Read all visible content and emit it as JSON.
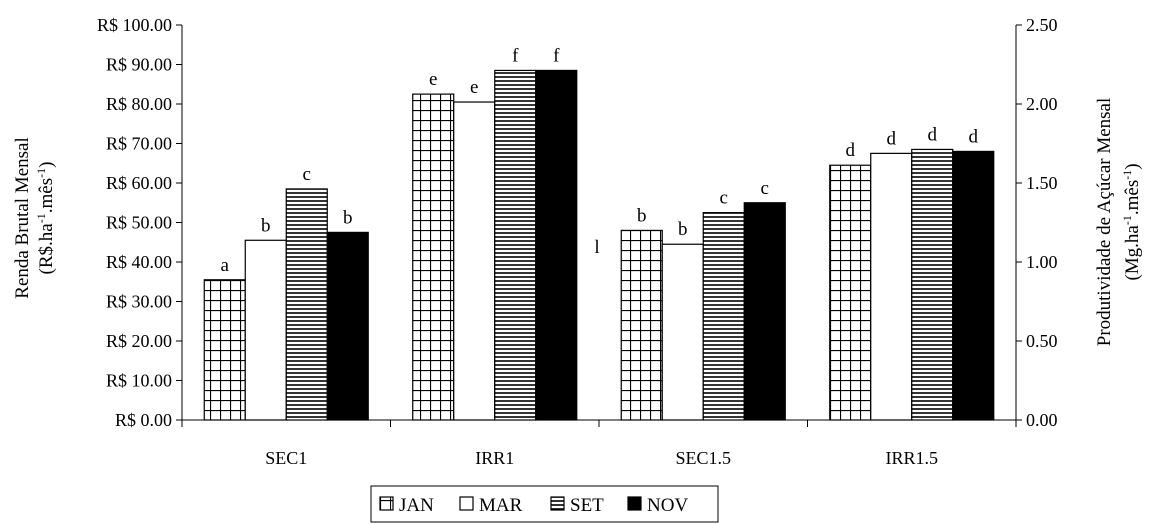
{
  "chart_data": {
    "type": "bar",
    "categories": [
      "SEC1",
      "IRR1",
      "SEC1.5",
      "IRR1.5"
    ],
    "series": [
      {
        "name": "JAN",
        "values": [
          35.5,
          82.5,
          48.0,
          64.5
        ],
        "labels": [
          "a",
          "e",
          "b",
          "d"
        ],
        "pattern": "grid"
      },
      {
        "name": "MAR",
        "values": [
          45.5,
          80.5,
          44.5,
          67.5
        ],
        "labels": [
          "b",
          "e",
          "b",
          "d"
        ],
        "pattern": "white"
      },
      {
        "name": "SET",
        "values": [
          58.5,
          88.5,
          52.5,
          68.5
        ],
        "labels": [
          "c",
          "f",
          "c",
          "d"
        ],
        "pattern": "hlines"
      },
      {
        "name": "NOV",
        "values": [
          47.5,
          88.5,
          55.0,
          68.0
        ],
        "labels": [
          "b",
          "f",
          "c",
          "d"
        ],
        "pattern": "black"
      }
    ],
    "ylim": [
      0,
      100
    ],
    "y_ticks": [
      0,
      10,
      20,
      30,
      40,
      50,
      60,
      70,
      80,
      90,
      100
    ],
    "y_tick_labels": [
      "R$ 0.00",
      "R$ 10.00",
      "R$ 20.00",
      "R$ 30.00",
      "R$ 40.00",
      "R$ 50.00",
      "R$ 60.00",
      "R$ 70.00",
      "R$ 80.00",
      "R$ 90.00",
      "R$ 100.00"
    ],
    "ylabel_line1": "Renda Brutal Mensal",
    "ylabel_line2_pre": "(R$.ha",
    "ylabel_line2_mid": ".mês",
    "ylabel_line2_post": ")",
    "ylabel_sup": "-1",
    "y2lim": [
      0,
      2.5
    ],
    "y2_ticks": [
      0,
      0.5,
      1.0,
      1.5,
      2.0,
      2.5
    ],
    "y2_tick_labels": [
      "0.00",
      "0.50",
      "1.00",
      "1.50",
      "2.00",
      "2.50"
    ],
    "y2label_line1": "Produtividade de Açúcar Mensal",
    "y2label_line2_pre": "(Mg.ha",
    "y2label_line2_mid": ".mês",
    "y2label_line2_post": ")",
    "y2label_sup": "-1",
    "stray_mark": "l",
    "legend_position": "bottom",
    "grid": false
  }
}
